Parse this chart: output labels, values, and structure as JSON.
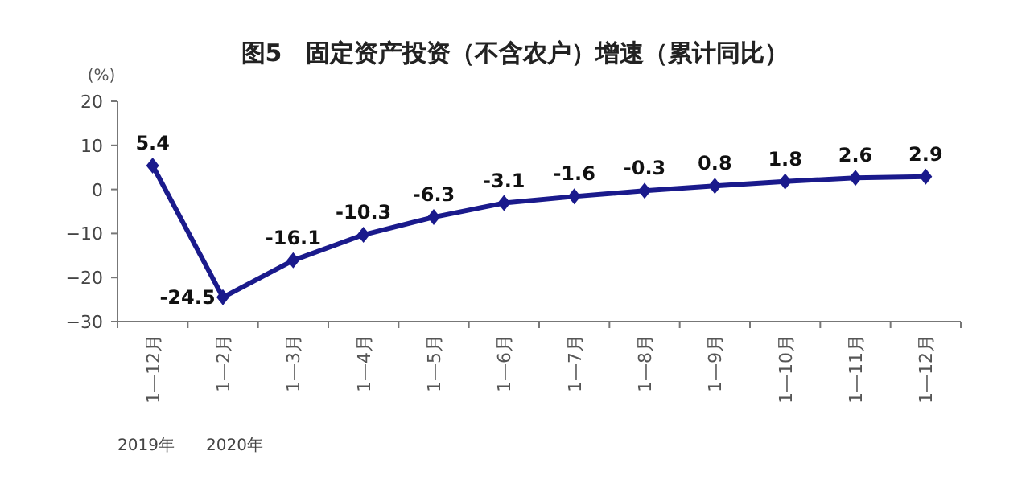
{
  "chart_data": {
    "type": "line",
    "title": "图5　固定资产投资（不含农户）增速（累计同比）",
    "ylabel": "(%)",
    "categories": [
      "1—12月",
      "1—2月",
      "1—3月",
      "1—4月",
      "1—5月",
      "1—6月",
      "1—7月",
      "1—8月",
      "1—9月",
      "1—10月",
      "1—11月",
      "1—12月"
    ],
    "series": [
      {
        "color": "#1a1a8c",
        "values": [
          5.4,
          -24.5,
          -16.1,
          -10.3,
          -6.3,
          -3.1,
          -1.6,
          -0.3,
          0.8,
          1.8,
          2.6,
          2.9
        ]
      }
    ],
    "ylim": [
      -30,
      20
    ],
    "yticks": [
      -30,
      -20,
      -10,
      0,
      10,
      20
    ],
    "grid": false,
    "marker": "diamond",
    "line_style": "solid",
    "data_labels": true,
    "annotations": [
      "2019年",
      "2020年"
    ]
  }
}
